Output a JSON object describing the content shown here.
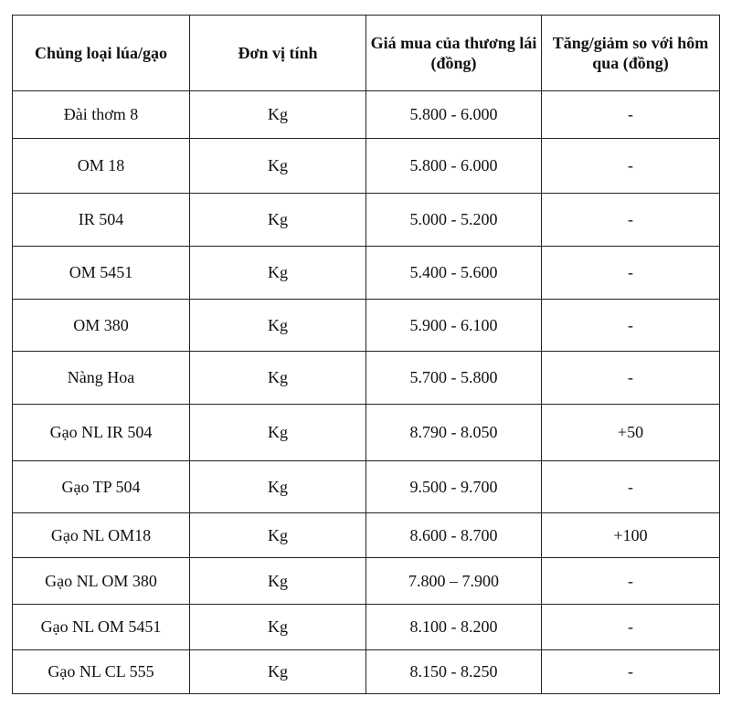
{
  "table": {
    "headers": [
      "Chủng loại lúa/gạo",
      "Đơn vị tính",
      "Giá mua của thương lái (đồng)",
      "Tăng/giảm so với hôm qua (đồng)"
    ],
    "rows": [
      [
        "Đài thơm 8",
        "Kg",
        "5.800 - 6.000",
        "-"
      ],
      [
        "OM 18",
        "Kg",
        "5.800 - 6.000",
        "-"
      ],
      [
        "IR 504",
        "Kg",
        "5.000 - 5.200",
        "-"
      ],
      [
        "OM 5451",
        "Kg",
        "5.400 - 5.600",
        "-"
      ],
      [
        "OM 380",
        "Kg",
        "5.900 - 6.100",
        "-"
      ],
      [
        "Nàng Hoa",
        "Kg",
        "5.700 - 5.800",
        "-"
      ],
      [
        "Gạo NL IR 504",
        "Kg",
        "8.790 - 8.050",
        "+50"
      ],
      [
        "Gạo TP 504",
        "Kg",
        "9.500 - 9.700",
        "-"
      ],
      [
        "Gạo NL OM18",
        "Kg",
        "8.600 - 8.700",
        "+100"
      ],
      [
        "Gạo NL OM 380",
        "Kg",
        "7.800 – 7.900",
        "-"
      ],
      [
        "Gạo NL OM 5451",
        "Kg",
        "8.100 - 8.200",
        "-"
      ],
      [
        "Gạo NL CL 555",
        "Kg",
        "8.150 - 8.250",
        "-"
      ]
    ]
  }
}
